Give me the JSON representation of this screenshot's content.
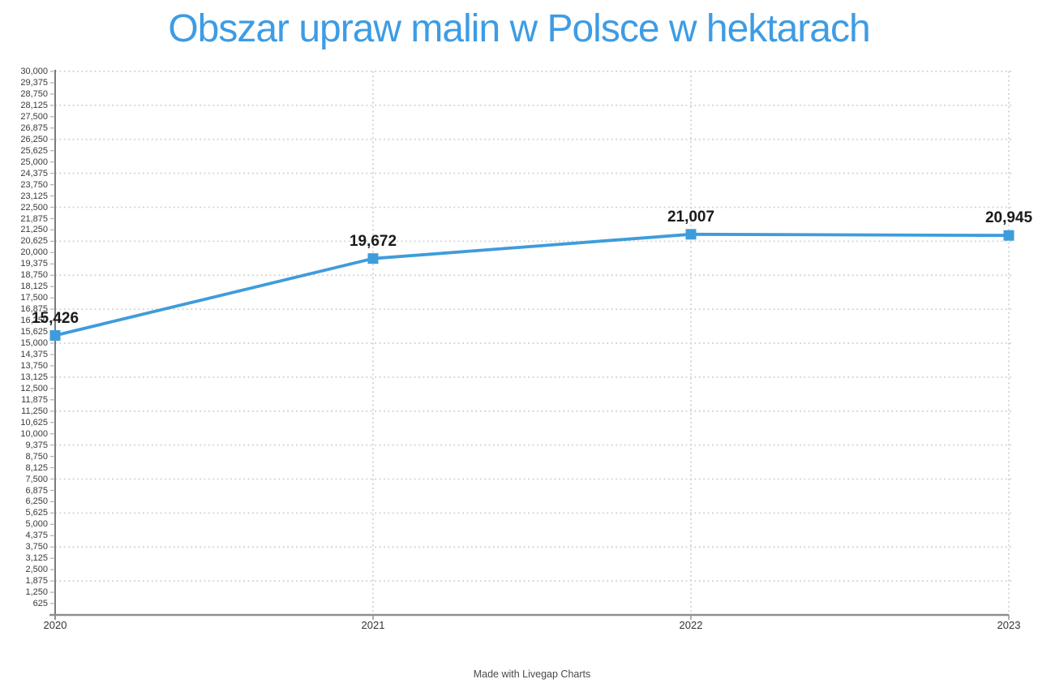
{
  "page": {
    "attribution": "Made with Livegap Charts"
  },
  "colors": {
    "title": "#3d9ce4",
    "line": "#3e9cdb",
    "marker": "#3e9cdb",
    "grid": "#d0d0d0",
    "y_axis": "#5a5a5a",
    "x_axis": "#8f8f8f",
    "tick": "#b3b3b3",
    "tick_label": "#3a3a3a",
    "data_label": "#1a1a1a",
    "attribution": "#4a4a4a"
  },
  "chart_data": {
    "type": "line",
    "title": "Obszar upraw malin w Polsce w hektarach",
    "categories": [
      "2020",
      "2021",
      "2022",
      "2023"
    ],
    "series": [
      {
        "values": [
          15426,
          19672,
          21007,
          20945
        ],
        "data_labels": [
          "15,426",
          "19,672",
          "21,007",
          "20,945"
        ],
        "color": "#3e9cdb",
        "marker": "square"
      }
    ],
    "xlabel": "",
    "ylabel": "",
    "ylim": [
      0,
      30000
    ],
    "y_tick_step": 625,
    "y_gridline_step": 1875,
    "grid_style": "dotted",
    "legend_position": "none",
    "y_tick_labels": [
      "30,000",
      "29,375",
      "28,750",
      "28,125",
      "27,500",
      "26,875",
      "26,250",
      "25,625",
      "25,000",
      "24,375",
      "23,750",
      "23,125",
      "22,500",
      "21,875",
      "21,250",
      "20,625",
      "20,000",
      "19,375",
      "18,750",
      "18,125",
      "17,500",
      "16,875",
      "16,250",
      "15,625",
      "15,000",
      "14,375",
      "13,750",
      "13,125",
      "12,500",
      "11,875",
      "11,250",
      "10,625",
      "10,000",
      "9,375",
      "8,750",
      "8,125",
      "7,500",
      "6,875",
      "6,250",
      "5,625",
      "5,000",
      "4,375",
      "3,750",
      "3,125",
      "2,500",
      "1,875",
      "1,250",
      "625"
    ]
  }
}
